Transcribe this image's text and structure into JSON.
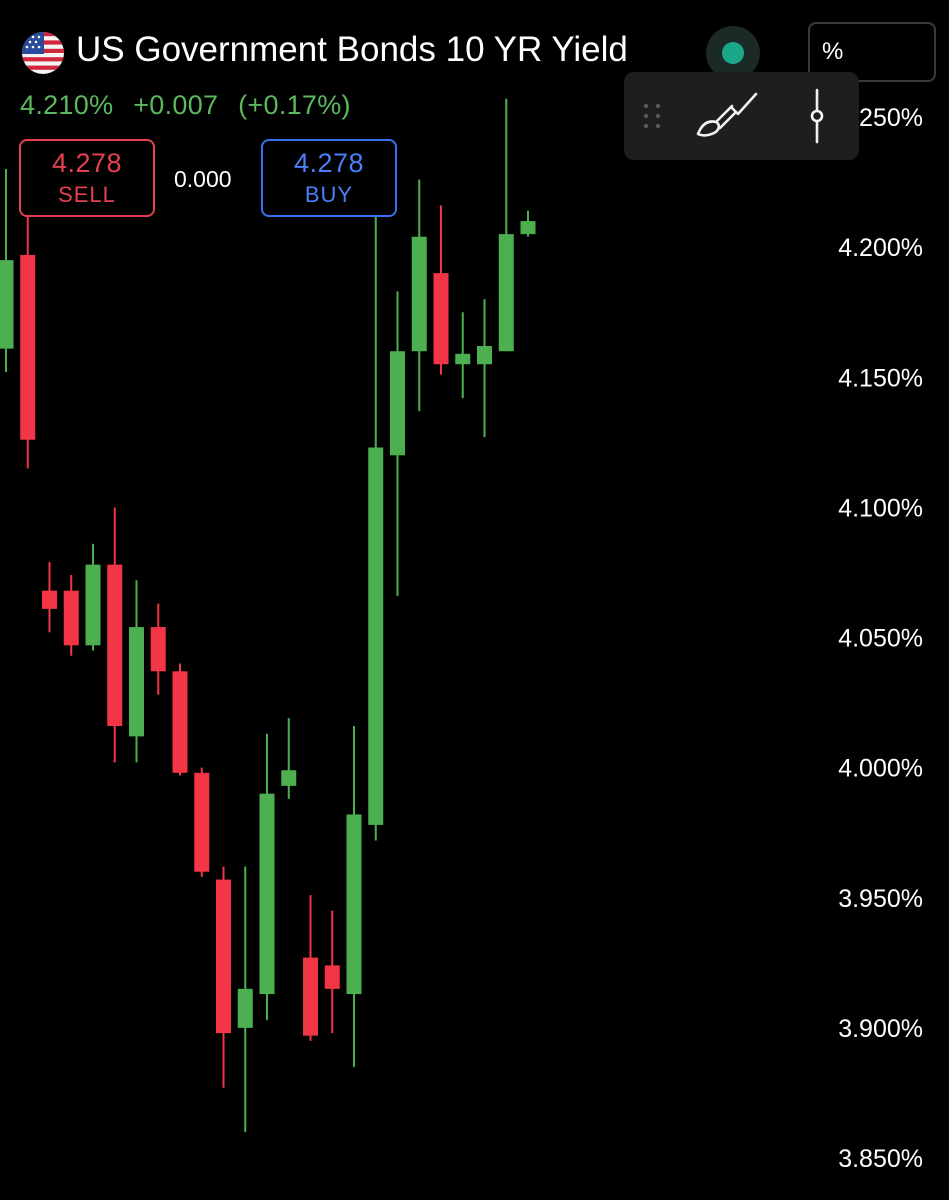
{
  "header": {
    "title": "US Government Bonds 10 YR Yield",
    "flag_icon": "us-flag-icon",
    "status_color": "#19a98a",
    "unit_label": "%"
  },
  "quote": {
    "last": "4.210%",
    "change": "+0.007",
    "change_pct": "(+0.17%)",
    "color": "#5cb85c"
  },
  "trade": {
    "sell_price": "4.278",
    "sell_label": "SELL",
    "spread": "0.000",
    "buy_price": "4.278",
    "buy_label": "BUY",
    "sell_color": "#e5404f",
    "buy_color": "#3a6ff0"
  },
  "toolbar": {
    "items": [
      "drag-handle-icon",
      "brush-icon",
      "crosshair-line-icon"
    ]
  },
  "chart_data": {
    "type": "candlestick",
    "up_color": "#4cb050",
    "down_color": "#f23645",
    "ylim": [
      3.835,
      4.265
    ],
    "y_ticks": [
      "4.250%",
      "4.200%",
      "4.150%",
      "4.100%",
      "4.050%",
      "4.000%",
      "3.950%",
      "3.900%",
      "3.850%"
    ],
    "y_tick_values": [
      4.25,
      4.2,
      4.15,
      4.1,
      4.05,
      4.0,
      3.95,
      3.9,
      3.85
    ],
    "candles": [
      {
        "o": 4.161,
        "h": 4.23,
        "l": 4.152,
        "c": 4.195
      },
      {
        "o": 4.197,
        "h": 4.212,
        "l": 4.115,
        "c": 4.126
      },
      {
        "o": 4.068,
        "h": 4.079,
        "l": 4.052,
        "c": 4.061
      },
      {
        "o": 4.068,
        "h": 4.074,
        "l": 4.043,
        "c": 4.047
      },
      {
        "o": 4.047,
        "h": 4.086,
        "l": 4.045,
        "c": 4.078
      },
      {
        "o": 4.078,
        "h": 4.1,
        "l": 4.002,
        "c": 4.016
      },
      {
        "o": 4.012,
        "h": 4.072,
        "l": 4.002,
        "c": 4.054
      },
      {
        "o": 4.054,
        "h": 4.063,
        "l": 4.028,
        "c": 4.037
      },
      {
        "o": 4.037,
        "h": 4.04,
        "l": 3.997,
        "c": 3.998
      },
      {
        "o": 3.998,
        "h": 4.0,
        "l": 3.958,
        "c": 3.96
      },
      {
        "o": 3.957,
        "h": 3.962,
        "l": 3.877,
        "c": 3.898
      },
      {
        "o": 3.9,
        "h": 3.962,
        "l": 3.86,
        "c": 3.915
      },
      {
        "o": 3.913,
        "h": 4.013,
        "l": 3.903,
        "c": 3.99
      },
      {
        "o": 3.993,
        "h": 4.019,
        "l": 3.988,
        "c": 3.999
      },
      {
        "o": 3.927,
        "h": 3.951,
        "l": 3.895,
        "c": 3.897
      },
      {
        "o": 3.924,
        "h": 3.945,
        "l": 3.898,
        "c": 3.915
      },
      {
        "o": 3.913,
        "h": 4.016,
        "l": 3.885,
        "c": 3.982
      },
      {
        "o": 3.978,
        "h": 4.213,
        "l": 3.972,
        "c": 4.123
      },
      {
        "o": 4.12,
        "h": 4.183,
        "l": 4.066,
        "c": 4.16
      },
      {
        "o": 4.16,
        "h": 4.226,
        "l": 4.137,
        "c": 4.204
      },
      {
        "o": 4.19,
        "h": 4.216,
        "l": 4.151,
        "c": 4.155
      },
      {
        "o": 4.155,
        "h": 4.175,
        "l": 4.142,
        "c": 4.159
      },
      {
        "o": 4.155,
        "h": 4.18,
        "l": 4.127,
        "c": 4.162
      },
      {
        "o": 4.16,
        "h": 4.257,
        "l": 4.16,
        "c": 4.205
      },
      {
        "o": 4.205,
        "h": 4.214,
        "l": 4.204,
        "c": 4.21
      }
    ]
  }
}
